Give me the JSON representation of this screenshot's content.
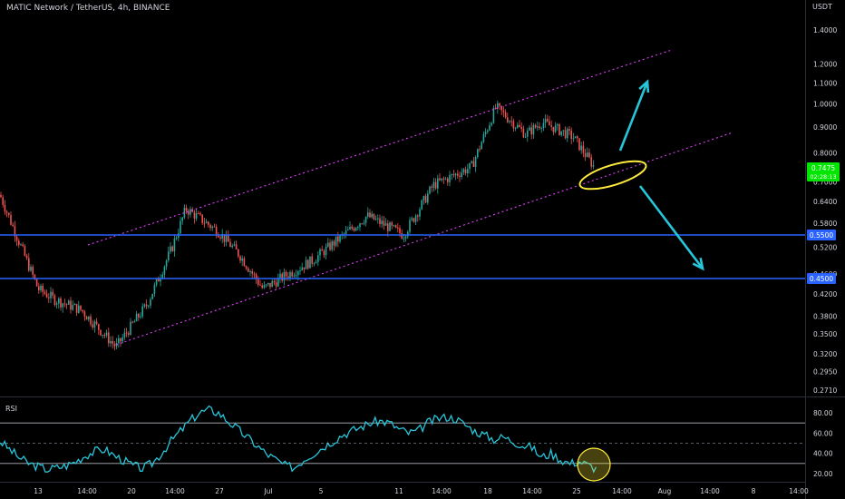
{
  "header": {
    "title": "MATIC Network / TetherUS, 4h, BINANCE",
    "unit": "USDT"
  },
  "colors": {
    "background": "#000000",
    "up": "#26a69a",
    "down": "#ef5350",
    "channel": "#e040fb",
    "level": "#2962ff",
    "arrow": "#26c6da",
    "highlight": "#ffeb3b",
    "rsi": "#26c6da",
    "last_price_bg": "#00e600"
  },
  "chart_data": [
    {
      "type": "candlestick",
      "title": "MATIC Network / TetherUS, 4h, BINANCE",
      "ylabel": "USDT",
      "ylim": [
        0.27,
        1.5
      ],
      "y_scale": "log",
      "y_ticks": [
        "1.4000",
        "1.2000",
        "1.1000",
        "1.0000",
        "0.9000",
        "0.8000",
        "0.7000",
        "0.6400",
        "0.5800",
        "0.5200",
        "0.4600",
        "0.4200",
        "0.3800",
        "0.3500",
        "0.3200",
        "0.2950",
        "0.2710"
      ],
      "x_ticks": [
        "13",
        "14:00",
        "20",
        "14:00",
        "27",
        "Jul",
        "5",
        "11",
        "14:00",
        "18",
        "14:00",
        "25",
        "14:00",
        "Aug",
        "14:00",
        "8",
        "14:00"
      ],
      "price_path": [
        [
          "13",
          0.66
        ],
        [
          "14:00",
          0.43
        ],
        [
          "14:00",
          0.41
        ],
        [
          "14:00",
          0.39
        ],
        [
          "20",
          0.33
        ],
        [
          "14:00",
          0.4
        ],
        [
          "14:00",
          0.52
        ],
        [
          "14:00",
          0.62
        ],
        [
          "27",
          0.56
        ],
        [
          "27",
          0.5
        ],
        [
          "Jul",
          0.43
        ],
        [
          "Jul",
          0.46
        ],
        [
          "5",
          0.49
        ],
        [
          "11",
          0.6
        ],
        [
          "11",
          0.55
        ],
        [
          "14:00",
          0.69
        ],
        [
          "14:00",
          0.75
        ],
        [
          "18",
          0.985
        ],
        [
          "18",
          0.87
        ],
        [
          "14:00",
          0.92
        ],
        [
          "25",
          0.86
        ],
        [
          "25",
          0.7475
        ]
      ],
      "horizontal_levels": [
        {
          "value": 0.55,
          "label": "0.5500"
        },
        {
          "value": 0.45,
          "label": "0.4500"
        }
      ],
      "channel": {
        "upper": [
          [
            "14:00",
            0.55
          ],
          [
            "14:00",
            1.3
          ]
        ],
        "lower": [
          [
            "20",
            0.33
          ],
          [
            "14:00",
            0.88
          ]
        ]
      },
      "annotations": [
        {
          "kind": "arrow",
          "direction": "up"
        },
        {
          "kind": "arrow",
          "direction": "down"
        },
        {
          "kind": "ellipse",
          "on": "lower channel line"
        }
      ],
      "last_price": {
        "value": "0.7475",
        "countdown": "02:28:13"
      },
      "grid": false
    },
    {
      "type": "line",
      "title": "RSI",
      "ylim": [
        15,
        95
      ],
      "y_ticks": [
        "80.00",
        "60.00",
        "40.00",
        "20.00"
      ],
      "bands": [
        70,
        50,
        30
      ],
      "values": [
        52,
        44,
        36,
        30,
        27,
        24,
        26,
        28,
        32,
        38,
        42,
        44,
        38,
        33,
        28,
        25,
        30,
        40,
        52,
        62,
        72,
        80,
        83,
        80,
        72,
        64,
        56,
        48,
        40,
        34,
        28,
        26,
        34,
        40,
        46,
        52,
        58,
        62,
        66,
        70,
        72,
        70,
        64,
        60,
        62,
        70,
        74,
        76,
        74,
        68,
        62,
        58,
        54,
        56,
        52,
        48,
        46,
        36,
        40,
        34,
        30,
        32,
        28,
        24
      ]
    }
  ]
}
